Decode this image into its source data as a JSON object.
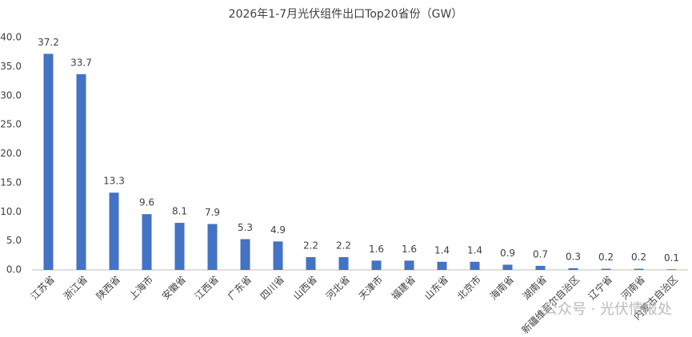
{
  "chart_data": {
    "type": "bar",
    "title": "2026年1-7月光伏组件出口Top20省份（GW）",
    "categories": [
      "江苏省",
      "浙江省",
      "陕西省",
      "上海市",
      "安徽省",
      "江西省",
      "广东省",
      "四川省",
      "山西省",
      "河北省",
      "天津市",
      "福建省",
      "山东省",
      "北京市",
      "海南省",
      "湖南省",
      "新疆维吾尔自治区",
      "辽宁省",
      "河南省",
      "内蒙古自治区"
    ],
    "values": [
      37.2,
      33.7,
      13.3,
      9.6,
      8.1,
      7.9,
      5.3,
      4.9,
      2.2,
      2.2,
      1.6,
      1.6,
      1.4,
      1.4,
      0.9,
      0.7,
      0.3,
      0.2,
      0.2,
      0.1
    ],
    "color": "#4472c4",
    "ylim": [
      0,
      40
    ],
    "yticks": [
      {
        "value": 0,
        "label": "0.0"
      },
      {
        "value": 5,
        "label": "5.0"
      },
      {
        "value": 10,
        "label": "10.0"
      },
      {
        "value": 15,
        "label": "15.0"
      },
      {
        "value": 20,
        "label": "20.0"
      },
      {
        "value": 25,
        "label": "25.0"
      },
      {
        "value": 30,
        "label": "30.0"
      },
      {
        "value": 35,
        "label": "35.0"
      },
      {
        "value": 40,
        "label": "40.0"
      }
    ],
    "grid": false,
    "watermark": "公众号 · 光伏情报处"
  }
}
